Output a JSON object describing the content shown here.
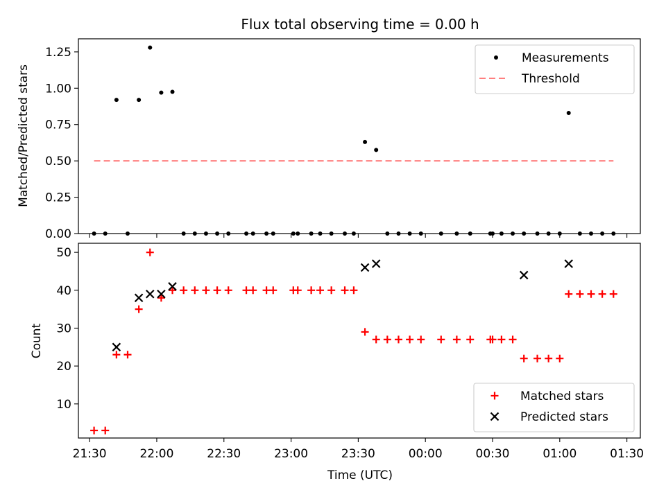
{
  "chart_data": [
    {
      "type": "scatter",
      "title": "Flux total observing time = 0.00 h",
      "xlabel": "",
      "ylabel": "Matched/Predicted stars",
      "xlim": [
        "21:25",
        "01:36"
      ],
      "ylim": [
        0,
        1.34
      ],
      "yticks": [
        "0.00",
        "0.25",
        "0.50",
        "0.75",
        "1.00",
        "1.25"
      ],
      "legend_position": "top-right",
      "legend": [
        "Measurements",
        "Threshold"
      ],
      "threshold": {
        "name": "Threshold",
        "y": 0.5,
        "x_start": "21:32",
        "x_end": "01:24",
        "color": "#ff7f7f",
        "style": "dashed"
      },
      "series": [
        {
          "name": "Measurements",
          "color": "#000000",
          "marker": "dot",
          "points": [
            [
              "21:32",
              0.0
            ],
            [
              "21:37",
              0.0
            ],
            [
              "21:42",
              0.92
            ],
            [
              "21:47",
              0.0
            ],
            [
              "21:52",
              0.92
            ],
            [
              "21:57",
              1.28
            ],
            [
              "22:02",
              0.97
            ],
            [
              "22:07",
              0.975
            ],
            [
              "22:12",
              0.0
            ],
            [
              "22:17",
              0.0
            ],
            [
              "22:22",
              0.0
            ],
            [
              "22:27",
              0.0
            ],
            [
              "22:32",
              0.0
            ],
            [
              "22:40",
              0.0
            ],
            [
              "22:43",
              0.0
            ],
            [
              "22:49",
              0.0
            ],
            [
              "22:52",
              0.0
            ],
            [
              "23:01",
              0.0
            ],
            [
              "23:03",
              0.0
            ],
            [
              "23:09",
              0.0
            ],
            [
              "23:13",
              0.0
            ],
            [
              "23:18",
              0.0
            ],
            [
              "23:24",
              0.0
            ],
            [
              "23:28",
              0.0
            ],
            [
              "23:33",
              0.63
            ],
            [
              "23:38",
              0.575
            ],
            [
              "23:43",
              0.0
            ],
            [
              "23:48",
              0.0
            ],
            [
              "23:53",
              0.0
            ],
            [
              "23:58",
              0.0
            ],
            [
              "00:07",
              0.0
            ],
            [
              "00:14",
              0.0
            ],
            [
              "00:20",
              0.0
            ],
            [
              "00:29",
              0.0
            ],
            [
              "00:30",
              0.0
            ],
            [
              "00:34",
              0.0
            ],
            [
              "00:39",
              0.0
            ],
            [
              "00:44",
              0.0
            ],
            [
              "00:50",
              0.0
            ],
            [
              "00:55",
              0.0
            ],
            [
              "01:00",
              0.0
            ],
            [
              "01:04",
              0.83
            ],
            [
              "01:09",
              0.0
            ],
            [
              "01:14",
              0.0
            ],
            [
              "01:19",
              0.0
            ],
            [
              "01:24",
              0.0
            ]
          ]
        }
      ]
    },
    {
      "type": "scatter",
      "title": "",
      "xlabel": "Time (UTC)",
      "ylabel": "Count",
      "xlim": [
        "21:25",
        "01:36"
      ],
      "ylim": [
        1,
        52.4
      ],
      "yticks": [
        "10",
        "20",
        "30",
        "40",
        "50"
      ],
      "xticks": [
        "21:30",
        "22:00",
        "22:30",
        "23:00",
        "23:30",
        "00:00",
        "00:30",
        "01:00",
        "01:30"
      ],
      "legend_position": "bottom-right",
      "legend": [
        "Matched stars",
        "Predicted stars"
      ],
      "series": [
        {
          "name": "Matched stars",
          "color": "#ff0000",
          "marker": "plus",
          "points": [
            [
              "21:32",
              3
            ],
            [
              "21:37",
              3
            ],
            [
              "21:42",
              23
            ],
            [
              "21:47",
              23
            ],
            [
              "21:52",
              35
            ],
            [
              "21:57",
              50
            ],
            [
              "22:02",
              38
            ],
            [
              "22:07",
              40
            ],
            [
              "22:12",
              40
            ],
            [
              "22:17",
              40
            ],
            [
              "22:22",
              40
            ],
            [
              "22:27",
              40
            ],
            [
              "22:32",
              40
            ],
            [
              "22:40",
              40
            ],
            [
              "22:43",
              40
            ],
            [
              "22:49",
              40
            ],
            [
              "22:52",
              40
            ],
            [
              "23:01",
              40
            ],
            [
              "23:03",
              40
            ],
            [
              "23:09",
              40
            ],
            [
              "23:13",
              40
            ],
            [
              "23:18",
              40
            ],
            [
              "23:24",
              40
            ],
            [
              "23:28",
              40
            ],
            [
              "23:33",
              29
            ],
            [
              "23:38",
              27
            ],
            [
              "23:43",
              27
            ],
            [
              "23:48",
              27
            ],
            [
              "23:53",
              27
            ],
            [
              "23:58",
              27
            ],
            [
              "00:07",
              27
            ],
            [
              "00:14",
              27
            ],
            [
              "00:20",
              27
            ],
            [
              "00:29",
              27
            ],
            [
              "00:30",
              27
            ],
            [
              "00:34",
              27
            ],
            [
              "00:39",
              27
            ],
            [
              "00:44",
              22
            ],
            [
              "00:50",
              22
            ],
            [
              "00:55",
              22
            ],
            [
              "01:00",
              22
            ],
            [
              "01:04",
              39
            ],
            [
              "01:09",
              39
            ],
            [
              "01:14",
              39
            ],
            [
              "01:19",
              39
            ],
            [
              "01:24",
              39
            ]
          ]
        },
        {
          "name": "Predicted stars",
          "color": "#000000",
          "marker": "x",
          "points": [
            [
              "21:42",
              25
            ],
            [
              "21:52",
              38
            ],
            [
              "21:57",
              39
            ],
            [
              "22:02",
              39
            ],
            [
              "22:07",
              41
            ],
            [
              "23:33",
              46
            ],
            [
              "23:38",
              47
            ],
            [
              "00:44",
              44
            ],
            [
              "01:04",
              47
            ]
          ]
        }
      ]
    }
  ]
}
